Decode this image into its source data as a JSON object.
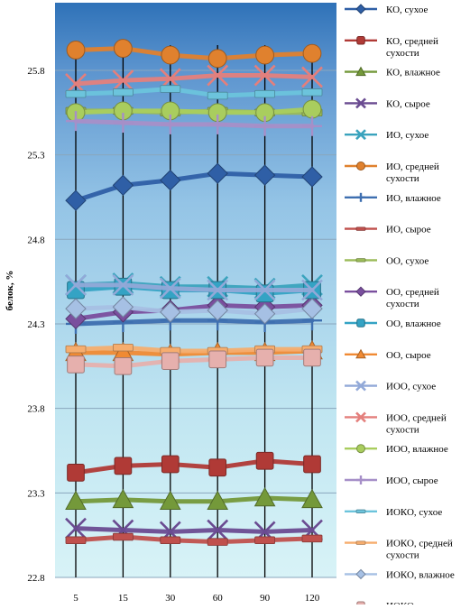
{
  "chart_data": {
    "type": "line",
    "ylabel": "белок, %",
    "xlabel": "",
    "x": [
      "5",
      "15",
      "30",
      "60",
      "90",
      "120"
    ],
    "ylim": [
      22.8,
      26.2
    ],
    "yticks": [
      "22.8",
      "23.3",
      "23.8",
      "24.3",
      "24.8",
      "25.3",
      "25.8"
    ],
    "grid": "horizontal",
    "legend_position": "right",
    "background_gradient": [
      "#2f72b8",
      "#d8f3f7"
    ],
    "series": [
      {
        "name": "КО, сухое",
        "color": "#2f5fa6",
        "marker": "diamond",
        "values": [
          25.03,
          25.12,
          25.15,
          25.19,
          25.18,
          25.17
        ]
      },
      {
        "name": "КО, средней сухости",
        "color": "#b03a36",
        "marker": "square",
        "values": [
          23.42,
          23.46,
          23.47,
          23.45,
          23.49,
          23.47
        ]
      },
      {
        "name": "КО, влажное",
        "color": "#74993a",
        "marker": "triangle",
        "values": [
          23.25,
          23.26,
          23.25,
          23.25,
          23.27,
          23.26
        ]
      },
      {
        "name": "КО, сырое",
        "color": "#6a4b91",
        "marker": "x",
        "values": [
          23.09,
          23.08,
          23.07,
          23.08,
          23.07,
          23.08
        ]
      },
      {
        "name": "ИО, сухое",
        "color": "#3aa3bd",
        "marker": "x",
        "values": [
          24.53,
          24.54,
          24.52,
          24.52,
          24.51,
          24.53
        ]
      },
      {
        "name": "ИО, средней сухости",
        "color": "#e0812e",
        "marker": "circle",
        "values": [
          25.92,
          25.93,
          25.89,
          25.87,
          25.89,
          25.9
        ]
      },
      {
        "name": "ИО, влажное",
        "color": "#3e6fb0",
        "marker": "plus",
        "values": [
          24.3,
          24.31,
          24.32,
          24.32,
          24.31,
          24.32
        ]
      },
      {
        "name": "ИО, сырое",
        "color": "#c0504d",
        "marker": "dash",
        "values": [
          23.02,
          23.04,
          23.02,
          23.01,
          23.02,
          23.03
        ]
      },
      {
        "name": "ОО, сухое",
        "color": "#9bbb59",
        "marker": "dash",
        "values": [
          25.56,
          25.56,
          25.55,
          25.56,
          25.55,
          25.55
        ]
      },
      {
        "name": "ОО, средней сухости",
        "color": "#7a4f9e",
        "marker": "diamond",
        "values": [
          24.33,
          24.37,
          24.38,
          24.41,
          24.4,
          24.41
        ]
      },
      {
        "name": "ОО, влажное",
        "color": "#34a3c4",
        "marker": "square",
        "values": [
          24.5,
          24.52,
          24.5,
          24.5,
          24.48,
          24.5
        ]
      },
      {
        "name": "ОО, сырое",
        "color": "#f08a33",
        "marker": "triangle",
        "values": [
          24.13,
          24.13,
          24.12,
          24.13,
          24.13,
          24.14
        ]
      },
      {
        "name": "ИОО, сухое",
        "color": "#92a9d8",
        "marker": "x",
        "values": [
          24.53,
          24.53,
          24.51,
          24.5,
          24.5,
          24.5
        ]
      },
      {
        "name": "ИОО, средней сухости",
        "color": "#e47f7c",
        "marker": "x",
        "values": [
          25.72,
          25.74,
          25.75,
          25.77,
          25.77,
          25.76
        ]
      },
      {
        "name": "ИОО, влажное",
        "color": "#a9cd5e",
        "marker": "circle",
        "values": [
          25.55,
          25.56,
          25.56,
          25.55,
          25.55,
          25.57
        ]
      },
      {
        "name": "ИОО, сырое",
        "color": "#a68fc8",
        "marker": "plus",
        "values": [
          25.5,
          25.49,
          25.48,
          25.48,
          25.47,
          25.47
        ]
      },
      {
        "name": "ИОКО, сухое",
        "color": "#6cc4dc",
        "marker": "dash",
        "values": [
          25.66,
          25.67,
          25.69,
          25.65,
          25.66,
          25.67
        ]
      },
      {
        "name": "ИОКО, средней сухости",
        "color": "#f6ad6e",
        "marker": "dash",
        "values": [
          24.15,
          24.16,
          24.14,
          24.14,
          24.15,
          24.15
        ]
      },
      {
        "name": "ИОКО, влажное",
        "color": "#a6c0e4",
        "marker": "diamond",
        "values": [
          24.39,
          24.4,
          24.37,
          24.38,
          24.36,
          24.39
        ]
      },
      {
        "name": "ИОКО, сырое",
        "color": "#e6b0ad",
        "marker": "square",
        "values": [
          24.06,
          24.05,
          24.08,
          24.09,
          24.1,
          24.1
        ]
      }
    ]
  }
}
